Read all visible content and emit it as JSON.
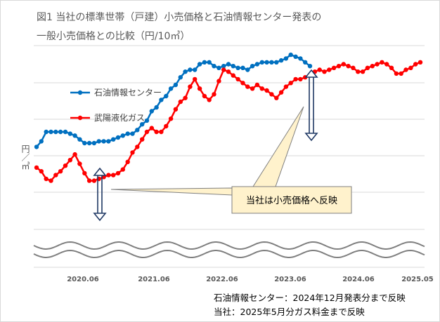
{
  "title_line1": "図1 当社の標準世帯（戸建）小売価格と石油情報センター発表の",
  "title_line2": "一般小売価格との比較（円/10㎥）",
  "y_unit": "円／㎥",
  "callout": "当社は小売価格へ反映",
  "notes": [
    "石油情報センター：2024年12月発表分まで反映",
    "当社：2025年5月分ガス料金まで反映"
  ],
  "colors": {
    "oil": "#0070c0",
    "company": "#ff0000",
    "grid": "#d9d9d9",
    "arrow": "#1f3864",
    "callout_fill": "#fff2cc"
  },
  "chart_data": {
    "type": "line",
    "x_tick_labels": [
      "2020.06",
      "2021.06",
      "2022.06",
      "2023.06",
      "2024.06",
      "2025.05"
    ],
    "legend_position": "top-left",
    "grid": true,
    "axis_break": true,
    "ylim": [
      0,
      100
    ],
    "series": [
      {
        "name": "石油情報センター",
        "color": "#0070c0",
        "start_month": 0,
        "values": [
          45,
          48,
          53,
          53,
          53,
          53,
          53,
          52,
          51,
          49,
          47,
          47,
          47,
          48,
          48,
          48,
          49,
          50,
          51,
          52,
          52,
          54,
          57,
          59,
          64,
          66,
          70,
          72,
          76,
          78,
          82,
          85,
          86,
          86,
          89,
          90,
          90,
          88,
          87,
          88,
          89,
          88,
          87,
          87,
          86,
          88,
          89,
          90,
          90,
          90,
          90,
          91,
          92,
          94,
          93,
          92,
          90,
          88
        ]
      },
      {
        "name": "武陽液化ガス",
        "color": "#ff0000",
        "start_month": 0,
        "values": [
          34,
          32,
          28,
          27,
          30,
          32,
          35,
          38,
          41,
          36,
          31,
          27,
          27,
          28,
          29,
          30,
          30,
          31,
          33,
          37,
          42,
          45,
          49,
          53,
          55,
          53,
          53,
          56,
          60,
          65,
          69,
          71,
          77,
          81,
          76,
          72,
          70,
          73,
          80,
          86,
          85,
          83,
          81,
          79,
          77,
          76,
          78,
          76,
          75,
          73,
          71,
          74,
          77,
          79,
          81,
          81,
          82,
          83,
          85,
          86,
          85,
          86,
          87,
          88,
          89,
          88,
          87,
          85,
          85,
          87,
          88,
          89,
          90,
          89,
          87,
          84,
          84,
          86,
          87,
          89,
          90
        ]
      }
    ]
  }
}
